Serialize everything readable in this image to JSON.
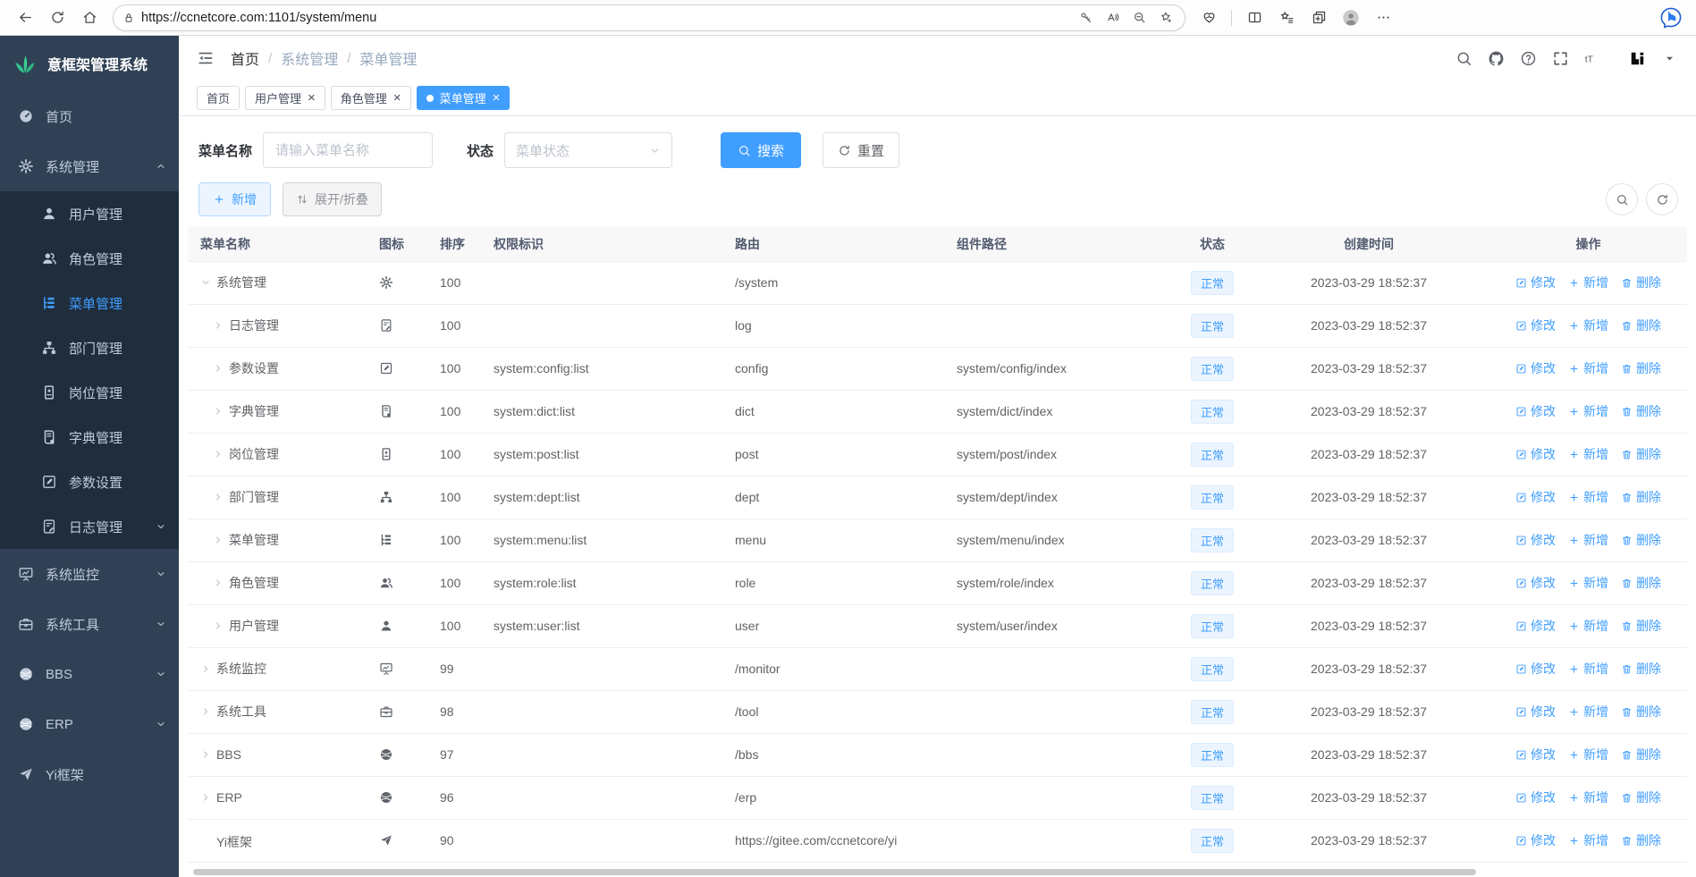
{
  "browser": {
    "url": "https://ccnetcore.com:1101/system/menu",
    "left_buttons": [
      {
        "name": "back",
        "icon": "back-icon"
      },
      {
        "name": "refresh",
        "icon": "refresh-icon"
      },
      {
        "name": "home",
        "icon": "home-icon"
      }
    ],
    "address_icon": {
      "name": "site-security",
      "icon": "lock-icon"
    },
    "address_icons_right": [
      {
        "name": "password",
        "icon": "password-key-icon"
      },
      {
        "name": "read-aloud",
        "icon": "read-aloud-icon"
      },
      {
        "name": "zoom-out",
        "icon": "zoom-out-icon"
      },
      {
        "name": "add-favorite",
        "icon": "favorite-star-add-icon"
      }
    ],
    "right_buttons": [
      {
        "name": "browser-essentials",
        "icon": "browser-essentials-icon"
      },
      {
        "name": "divider",
        "divider": true
      },
      {
        "name": "split-screen",
        "icon": "split-screen-icon"
      },
      {
        "name": "favorites",
        "icon": "favorites-star-lines-icon"
      },
      {
        "name": "collections",
        "icon": "collections-icon"
      },
      {
        "name": "profile",
        "icon": "profile-avatar-icon",
        "avatar": true
      },
      {
        "name": "more-options",
        "icon": "more-dots-icon"
      },
      {
        "name": "bing-chat",
        "icon": "bing-chat-icon",
        "push_right": true,
        "bing": true
      }
    ]
  },
  "sidebar": {
    "logo_text": "意框架管理系统",
    "logo_icon": "leaf-logo-icon",
    "items": [
      {
        "key": "home",
        "label": "首页",
        "icon": "dashboard-icon"
      },
      {
        "key": "system",
        "label": "系统管理",
        "icon": "gear-icon",
        "expanded": true,
        "children": [
          {
            "key": "user",
            "label": "用户管理",
            "icon": "user-icon"
          },
          {
            "key": "role",
            "label": "角色管理",
            "icon": "users-icon"
          },
          {
            "key": "menu",
            "label": "菜单管理",
            "icon": "menu-tree-icon",
            "active": true
          },
          {
            "key": "dept",
            "label": "部门管理",
            "icon": "org-chart-icon"
          },
          {
            "key": "post",
            "label": "岗位管理",
            "icon": "badge-icon"
          },
          {
            "key": "dict",
            "label": "字典管理",
            "icon": "dict-book-icon"
          },
          {
            "key": "config",
            "label": "参数设置",
            "icon": "edit-square-icon"
          },
          {
            "key": "log",
            "label": "日志管理",
            "icon": "log-doc-icon",
            "arrow": "down"
          }
        ]
      },
      {
        "key": "monitor",
        "label": "系统监控",
        "icon": "monitor-icon",
        "arrow": "down"
      },
      {
        "key": "tool",
        "label": "系统工具",
        "icon": "toolbox-icon",
        "arrow": "down"
      },
      {
        "key": "bbs",
        "label": "BBS",
        "icon": "globe-icon",
        "arrow": "down"
      },
      {
        "key": "erp",
        "label": "ERP",
        "icon": "globe-icon",
        "arrow": "down"
      },
      {
        "key": "yi",
        "label": "Yi框架",
        "icon": "paper-plane-icon"
      }
    ]
  },
  "topbar": {
    "breadcrumb": [
      "首页",
      "系统管理",
      "菜单管理"
    ],
    "breadcrumb_separator": "/",
    "right_buttons": [
      {
        "name": "search",
        "icon": "search-icon"
      },
      {
        "name": "github",
        "icon": "github-icon"
      },
      {
        "name": "help",
        "icon": "help-icon"
      },
      {
        "name": "fullscreen",
        "icon": "fullscreen-icon"
      },
      {
        "name": "font-size",
        "icon": "font-size-icon"
      }
    ],
    "user_logo_icon": "yi-logo-icon",
    "user_caret_icon": "caret-down-icon"
  },
  "tabs": [
    {
      "key": "home",
      "label": "首页",
      "closable": false,
      "active": false
    },
    {
      "key": "user",
      "label": "用户管理",
      "closable": true,
      "active": false
    },
    {
      "key": "role",
      "label": "角色管理",
      "closable": true,
      "active": false
    },
    {
      "key": "menu",
      "label": "菜单管理",
      "closable": true,
      "active": true
    }
  ],
  "filters": {
    "name_label": "菜单名称",
    "name_placeholder": "请输入菜单名称",
    "name_value": "",
    "status_label": "状态",
    "status_placeholder": "菜单状态",
    "search_button": "搜索",
    "reset_button": "重置"
  },
  "toolbar": {
    "add_button": "新增",
    "expand_collapse_button": "展开/折叠"
  },
  "table": {
    "columns": [
      "菜单名称",
      "图标",
      "排序",
      "权限标识",
      "路由",
      "组件路径",
      "状态",
      "创建时间",
      "操作"
    ],
    "actions": [
      {
        "key": "edit",
        "label": "修改",
        "icon": "edit-square-icon"
      },
      {
        "key": "add",
        "label": "新增",
        "icon": "plus-icon"
      },
      {
        "key": "delete",
        "label": "删除",
        "icon": "trash-icon"
      }
    ],
    "rows": [
      {
        "key": "system",
        "name": "系统管理",
        "level": 0,
        "arrow": "down",
        "icon": "gear-icon",
        "order": "100",
        "perm": "",
        "route": "/system",
        "component": "",
        "status": "正常",
        "created": "2023-03-29 18:52:37"
      },
      {
        "key": "log",
        "name": "日志管理",
        "level": 1,
        "arrow": "right",
        "icon": "log-doc-icon",
        "order": "100",
        "perm": "",
        "route": "log",
        "component": "",
        "status": "正常",
        "created": "2023-03-29 18:52:37"
      },
      {
        "key": "config",
        "name": "参数设置",
        "level": 1,
        "arrow": "right",
        "icon": "edit-square-icon",
        "order": "100",
        "perm": "system:config:list",
        "route": "config",
        "component": "system/config/index",
        "status": "正常",
        "created": "2023-03-29 18:52:37"
      },
      {
        "key": "dict",
        "name": "字典管理",
        "level": 1,
        "arrow": "right",
        "icon": "dict-book-icon",
        "order": "100",
        "perm": "system:dict:list",
        "route": "dict",
        "component": "system/dict/index",
        "status": "正常",
        "created": "2023-03-29 18:52:37"
      },
      {
        "key": "post",
        "name": "岗位管理",
        "level": 1,
        "arrow": "right",
        "icon": "badge-icon",
        "order": "100",
        "perm": "system:post:list",
        "route": "post",
        "component": "system/post/index",
        "status": "正常",
        "created": "2023-03-29 18:52:37"
      },
      {
        "key": "dept",
        "name": "部门管理",
        "level": 1,
        "arrow": "right",
        "icon": "org-chart-icon",
        "order": "100",
        "perm": "system:dept:list",
        "route": "dept",
        "component": "system/dept/index",
        "status": "正常",
        "created": "2023-03-29 18:52:37"
      },
      {
        "key": "menu",
        "name": "菜单管理",
        "level": 1,
        "arrow": "right",
        "icon": "menu-tree-icon",
        "order": "100",
        "perm": "system:menu:list",
        "route": "menu",
        "component": "system/menu/index",
        "status": "正常",
        "created": "2023-03-29 18:52:37"
      },
      {
        "key": "role",
        "name": "角色管理",
        "level": 1,
        "arrow": "right",
        "icon": "users-icon",
        "order": "100",
        "perm": "system:role:list",
        "route": "role",
        "component": "system/role/index",
        "status": "正常",
        "created": "2023-03-29 18:52:37"
      },
      {
        "key": "user",
        "name": "用户管理",
        "level": 1,
        "arrow": "right",
        "icon": "user-icon",
        "order": "100",
        "perm": "system:user:list",
        "route": "user",
        "component": "system/user/index",
        "status": "正常",
        "created": "2023-03-29 18:52:37"
      },
      {
        "key": "monitor",
        "name": "系统监控",
        "level": 0,
        "arrow": "right",
        "icon": "monitor-icon",
        "order": "99",
        "perm": "",
        "route": "/monitor",
        "component": "",
        "status": "正常",
        "created": "2023-03-29 18:52:37"
      },
      {
        "key": "tool",
        "name": "系统工具",
        "level": 0,
        "arrow": "right",
        "icon": "toolbox-icon",
        "order": "98",
        "perm": "",
        "route": "/tool",
        "component": "",
        "status": "正常",
        "created": "2023-03-29 18:52:37"
      },
      {
        "key": "bbs",
        "name": "BBS",
        "level": 0,
        "arrow": "right",
        "icon": "globe-icon",
        "order": "97",
        "perm": "",
        "route": "/bbs",
        "component": "",
        "status": "正常",
        "created": "2023-03-29 18:52:37"
      },
      {
        "key": "erp",
        "name": "ERP",
        "level": 0,
        "arrow": "right",
        "icon": "globe-icon",
        "order": "96",
        "perm": "",
        "route": "/erp",
        "component": "",
        "status": "正常",
        "created": "2023-03-29 18:52:37"
      },
      {
        "key": "yi",
        "name": "Yi框架",
        "level": 0,
        "arrow": "none",
        "icon": "paper-plane-icon",
        "order": "90",
        "perm": "",
        "route": "https://gitee.com/ccnetcore/yi",
        "component": "",
        "status": "正常",
        "created": "2023-03-29 18:52:37"
      }
    ]
  },
  "colors": {
    "accent": "#409eff",
    "sidebar_bg": "#304156",
    "submenu_bg": "#1f2d3d",
    "sidebar_text": "#bfcbd9",
    "tag_bg": "#ecf5ff",
    "tag_border": "#d9ecff",
    "logo_green": "#3dcf8e"
  }
}
